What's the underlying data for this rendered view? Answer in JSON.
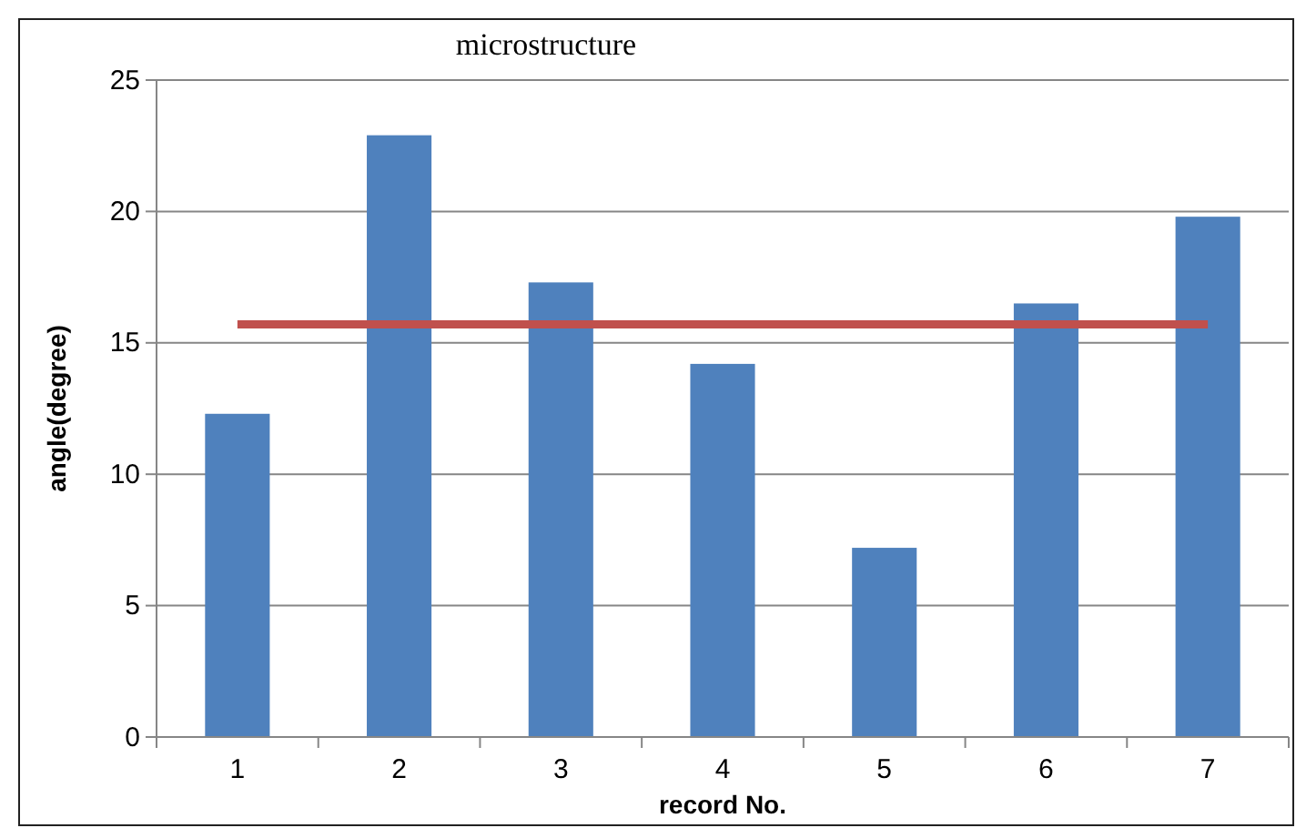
{
  "chart_data": {
    "type": "bar",
    "title": "microstructure",
    "xlabel": "record No.",
    "ylabel": "angle(degree)",
    "categories": [
      "1",
      "2",
      "3",
      "4",
      "5",
      "6",
      "7"
    ],
    "series": [
      {
        "color": "#4f81bd",
        "values": [
          12.3,
          22.9,
          17.3,
          14.2,
          7.2,
          16.5,
          19.8
        ]
      },
      {
        "type": "line",
        "color": "#c0504d",
        "values": [
          15.7,
          15.7,
          15.7,
          15.7,
          15.7,
          15.7,
          15.7
        ]
      }
    ],
    "ylim": [
      0,
      25
    ],
    "yticks": [
      0,
      5,
      10,
      15,
      20,
      25
    ],
    "grid": "y",
    "marker": "none",
    "line_style": "solid"
  }
}
